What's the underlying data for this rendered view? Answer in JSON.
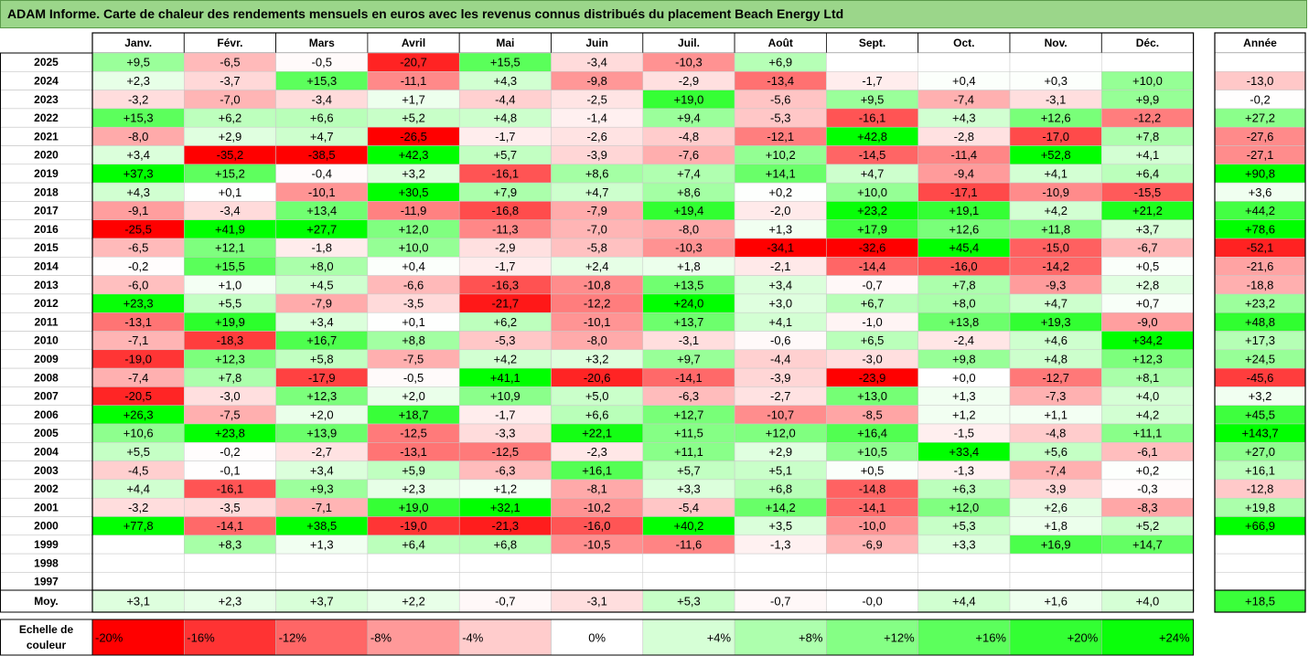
{
  "title": "ADAM Informe. Carte de chaleur des rendements mensuels en euros avec les revenus connus distribués du placement Beach Energy Ltd",
  "chart_data": {
    "type": "heatmap",
    "months": [
      "Janv.",
      "Févr.",
      "Mars",
      "Avril",
      "Mai",
      "Juin",
      "Juil.",
      "Août",
      "Sept.",
      "Oct.",
      "Nov.",
      "Déc."
    ],
    "annual_header": "Année",
    "rows": [
      {
        "year": "2025",
        "values": [
          "+9,5",
          "-6,5",
          "-0,5",
          "-20,7",
          "+15,5",
          "-3,4",
          "-10,3",
          "+6,9",
          "",
          "",
          "",
          ""
        ],
        "annual": ""
      },
      {
        "year": "2024",
        "values": [
          "+2,3",
          "-3,7",
          "+15,3",
          "-11,1",
          "+4,3",
          "-9,8",
          "-2,9",
          "-13,4",
          "-1,7",
          "+0,4",
          "+0,3",
          "+10,0"
        ],
        "annual": "-13,0"
      },
      {
        "year": "2023",
        "values": [
          "-3,2",
          "-7,0",
          "-3,4",
          "+1,7",
          "-4,4",
          "-2,5",
          "+19,0",
          "-5,6",
          "+9,5",
          "-7,4",
          "-3,1",
          "+9,9"
        ],
        "annual": "-0,2"
      },
      {
        "year": "2022",
        "values": [
          "+15,3",
          "+6,2",
          "+6,6",
          "+5,2",
          "+4,8",
          "-1,4",
          "+9,4",
          "-5,3",
          "-16,1",
          "+4,3",
          "+12,6",
          "-12,2"
        ],
        "annual": "+27,2"
      },
      {
        "year": "2021",
        "values": [
          "-8,0",
          "+2,9",
          "+4,7",
          "-26,5",
          "-1,7",
          "-2,6",
          "-4,8",
          "-12,1",
          "+42,8",
          "-2,8",
          "-17,0",
          "+7,8"
        ],
        "annual": "-27,6"
      },
      {
        "year": "2020",
        "values": [
          "+3,4",
          "-35,2",
          "-38,5",
          "+42,3",
          "+5,7",
          "-3,9",
          "-7,6",
          "+10,2",
          "-14,5",
          "-11,4",
          "+52,8",
          "+4,1"
        ],
        "annual": "-27,1"
      },
      {
        "year": "2019",
        "values": [
          "+37,3",
          "+15,2",
          "-0,4",
          "+3,2",
          "-16,1",
          "+8,6",
          "+7,4",
          "+14,1",
          "+4,7",
          "-9,4",
          "+4,1",
          "+6,4"
        ],
        "annual": "+90,8"
      },
      {
        "year": "2018",
        "values": [
          "+4,3",
          "+0,1",
          "-10,1",
          "+30,5",
          "+7,9",
          "+4,7",
          "+8,6",
          "+0,2",
          "+10,0",
          "-17,1",
          "-10,9",
          "-15,5"
        ],
        "annual": "+3,6"
      },
      {
        "year": "2017",
        "values": [
          "-9,1",
          "-3,4",
          "+13,4",
          "-11,9",
          "-16,8",
          "-7,9",
          "+19,4",
          "-2,0",
          "+23,2",
          "+19,1",
          "+4,2",
          "+21,2"
        ],
        "annual": "+44,2"
      },
      {
        "year": "2016",
        "values": [
          "-25,5",
          "+41,9",
          "+27,7",
          "+12,0",
          "-11,3",
          "-7,0",
          "-8,0",
          "+1,3",
          "+17,9",
          "+12,6",
          "+11,8",
          "+3,7"
        ],
        "annual": "+78,6"
      },
      {
        "year": "2015",
        "values": [
          "-6,5",
          "+12,1",
          "-1,8",
          "+10,0",
          "-2,9",
          "-5,8",
          "-10,3",
          "-34,1",
          "-32,6",
          "+45,4",
          "-15,0",
          "-6,7"
        ],
        "annual": "-52,1"
      },
      {
        "year": "2014",
        "values": [
          "-0,2",
          "+15,5",
          "+8,0",
          "+0,4",
          "-1,7",
          "+2,4",
          "+1,8",
          "-2,1",
          "-14,4",
          "-16,0",
          "-14,2",
          "+0,5"
        ],
        "annual": "-21,6"
      },
      {
        "year": "2013",
        "values": [
          "-6,0",
          "+1,0",
          "+4,5",
          "-6,6",
          "-16,3",
          "-10,8",
          "+13,5",
          "+3,4",
          "-0,7",
          "+7,8",
          "-9,3",
          "+2,8"
        ],
        "annual": "-18,8"
      },
      {
        "year": "2012",
        "values": [
          "+23,3",
          "+5,5",
          "-7,9",
          "-3,5",
          "-21,7",
          "-12,2",
          "+24,0",
          "+3,0",
          "+6,7",
          "+8,0",
          "+4,7",
          "+0,7"
        ],
        "annual": "+23,2"
      },
      {
        "year": "2011",
        "values": [
          "-13,1",
          "+19,9",
          "+3,4",
          "+0,1",
          "+6,2",
          "-10,1",
          "+13,7",
          "+4,1",
          "-1,0",
          "+13,8",
          "+19,3",
          "-9,0"
        ],
        "annual": "+48,8"
      },
      {
        "year": "2010",
        "values": [
          "-7,1",
          "-18,3",
          "+16,7",
          "+8,8",
          "-5,3",
          "-8,0",
          "-3,1",
          "-0,6",
          "+6,5",
          "-2,4",
          "+4,6",
          "+34,2"
        ],
        "annual": "+17,3"
      },
      {
        "year": "2009",
        "values": [
          "-19,0",
          "+12,3",
          "+5,8",
          "-7,5",
          "+4,2",
          "+3,2",
          "+9,7",
          "-4,4",
          "-3,0",
          "+9,8",
          "+4,8",
          "+12,3"
        ],
        "annual": "+24,5"
      },
      {
        "year": "2008",
        "values": [
          "-7,4",
          "+7,8",
          "-17,9",
          "-0,5",
          "+41,1",
          "-20,6",
          "-14,1",
          "-3,9",
          "-23,9",
          "+0,0",
          "-12,7",
          "+8,1"
        ],
        "annual": "-45,6"
      },
      {
        "year": "2007",
        "values": [
          "-20,5",
          "-3,0",
          "+12,3",
          "+2,0",
          "+10,9",
          "+5,0",
          "-6,3",
          "-2,7",
          "+13,0",
          "+1,3",
          "-7,3",
          "+4,0"
        ],
        "annual": "+3,2"
      },
      {
        "year": "2006",
        "values": [
          "+26,3",
          "-7,5",
          "+2,0",
          "+18,7",
          "-1,7",
          "+6,6",
          "+12,7",
          "-10,7",
          "-8,5",
          "+1,2",
          "+1,1",
          "+4,2"
        ],
        "annual": "+45,5"
      },
      {
        "year": "2005",
        "values": [
          "+10,6",
          "+23,8",
          "+13,9",
          "-12,5",
          "-3,3",
          "+22,1",
          "+11,5",
          "+12,0",
          "+16,4",
          "-1,5",
          "-4,8",
          "+11,1"
        ],
        "annual": "+143,7"
      },
      {
        "year": "2004",
        "values": [
          "+5,5",
          "-0,2",
          "-2,7",
          "-13,1",
          "-12,5",
          "-2,3",
          "+11,1",
          "+2,9",
          "+10,5",
          "+33,4",
          "+5,6",
          "-6,1"
        ],
        "annual": "+27,0"
      },
      {
        "year": "2003",
        "values": [
          "-4,5",
          "-0,1",
          "+3,4",
          "+5,9",
          "-6,3",
          "+16,1",
          "+5,7",
          "+5,1",
          "+0,5",
          "-1,3",
          "-7,4",
          "+0,2"
        ],
        "annual": "+16,1"
      },
      {
        "year": "2002",
        "values": [
          "+4,4",
          "-16,1",
          "+9,3",
          "+2,3",
          "+1,2",
          "-8,1",
          "+3,3",
          "+6,8",
          "-14,8",
          "+6,3",
          "-3,9",
          "-0,3"
        ],
        "annual": "-12,8"
      },
      {
        "year": "2001",
        "values": [
          "-3,2",
          "-3,5",
          "-7,1",
          "+19,0",
          "+32,1",
          "-10,2",
          "-5,4",
          "+14,2",
          "-14,1",
          "+12,0",
          "+2,6",
          "-8,3"
        ],
        "annual": "+19,8"
      },
      {
        "year": "2000",
        "values": [
          "+77,8",
          "-14,1",
          "+38,5",
          "-19,0",
          "-21,3",
          "-16,0",
          "+40,2",
          "+3,5",
          "-10,0",
          "+5,3",
          "+1,8",
          "+5,2"
        ],
        "annual": "+66,9"
      },
      {
        "year": "1999",
        "values": [
          "",
          "+8,3",
          "+1,3",
          "+6,4",
          "+6,8",
          "-10,5",
          "-11,6",
          "-1,3",
          "-6,9",
          "+3,3",
          "+16,9",
          "+14,7"
        ],
        "annual": ""
      },
      {
        "year": "1998",
        "values": [
          "",
          "",
          "",
          "",
          "",
          "",
          "",
          "",
          "",
          "",
          "",
          ""
        ],
        "annual": ""
      },
      {
        "year": "1997",
        "values": [
          "",
          "",
          "",
          "",
          "",
          "",
          "",
          "",
          "",
          "",
          "",
          ""
        ],
        "annual": ""
      }
    ],
    "average": {
      "label": "Moy.",
      "values": [
        "+3,1",
        "+2,3",
        "+3,7",
        "+2,2",
        "-0,7",
        "-3,1",
        "+5,3",
        "-0,7",
        "-0,0",
        "+4,4",
        "+1,6",
        "+4,0"
      ],
      "annual": "+18,5"
    },
    "scale": {
      "label_line1": "Echelle de",
      "label_line2": "couleur",
      "steps": [
        {
          "label": "-20%",
          "value": -20,
          "color": "#ff0000"
        },
        {
          "label": "-16%",
          "value": -16,
          "color": "#ff3333"
        },
        {
          "label": "-12%",
          "value": -12,
          "color": "#ff6666"
        },
        {
          "label": "-8%",
          "value": -8,
          "color": "#ff9999"
        },
        {
          "label": "-4%",
          "value": -4,
          "color": "#ffcccc"
        },
        {
          "label": "0%",
          "value": 0,
          "color": "#ffffff"
        },
        {
          "label": "+4%",
          "value": 4,
          "color": "#d6ffd6"
        },
        {
          "label": "+8%",
          "value": 8,
          "color": "#adffad"
        },
        {
          "label": "+12%",
          "value": 12,
          "color": "#85ff85"
        },
        {
          "label": "+16%",
          "value": 16,
          "color": "#5cff5c"
        },
        {
          "label": "+20%",
          "value": 20,
          "color": "#33ff33"
        },
        {
          "label": "+24%",
          "value": 24,
          "color": "#0aff0a"
        }
      ]
    }
  }
}
